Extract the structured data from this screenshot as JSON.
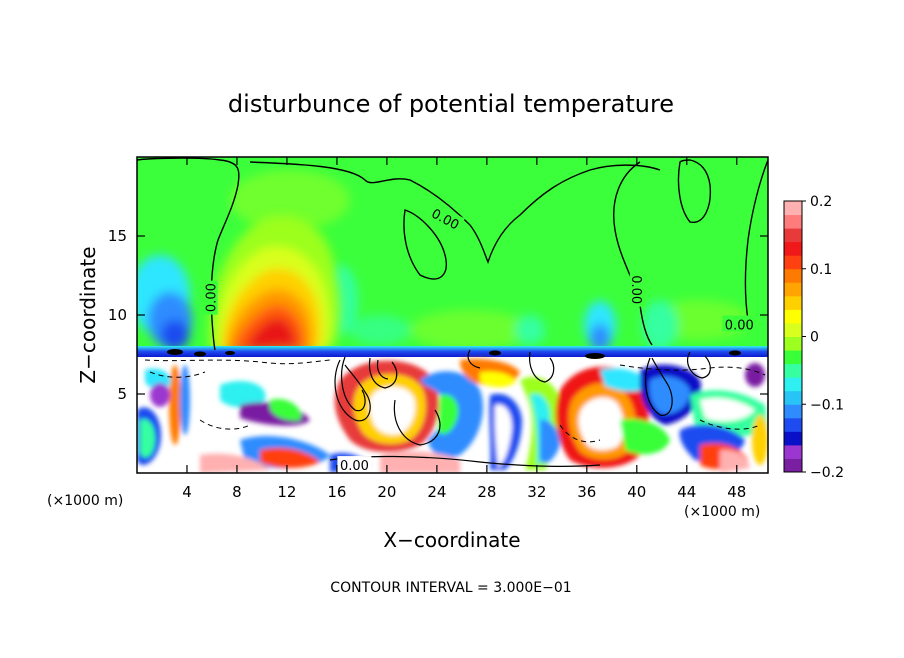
{
  "chart_data": {
    "type": "heatmap",
    "title": "disturbunce of potential temperature",
    "xlabel": "X−coordinate",
    "ylabel": "Z−coordinate",
    "x_unit_left": "(×1000 m)",
    "x_unit_right": "(×1000 m)",
    "xlim": [
      0,
      50.5
    ],
    "ylim": [
      0,
      20
    ],
    "x_ticks": [
      4,
      8,
      12,
      16,
      20,
      24,
      28,
      32,
      36,
      40,
      44,
      48
    ],
    "y_ticks": [
      5,
      10,
      15
    ],
    "colorbar": {
      "range": [
        -0.2,
        0.2
      ],
      "tick_values": [
        0.2,
        0.1,
        0,
        -0.1,
        -0.2
      ],
      "tick_labels": [
        "0.2",
        "0.1",
        "0",
        "−0.1",
        "−0.2"
      ],
      "colors": [
        "#7a1fa2",
        "#9b37d0",
        "#0a10c8",
        "#1f4cf0",
        "#2f8cff",
        "#27c4f5",
        "#2ff0f0",
        "#35ffa0",
        "#39ff39",
        "#9cff1f",
        "#d9ff1e",
        "#ffff00",
        "#ffd000",
        "#ffa400",
        "#ff7a00",
        "#ff4010",
        "#f01818",
        "#e83a3a",
        "#ff7c7c",
        "#ffb0b0"
      ]
    },
    "contour_labels": [
      {
        "text": "0.00",
        "x": 5.9,
        "z": 11.1
      },
      {
        "text": "0.00",
        "x": 24.7,
        "z": 16.1
      },
      {
        "text": "0.00",
        "x": 40.0,
        "z": 11.6
      },
      {
        "text": "0.00",
        "x": 48.2,
        "z": 9.4
      },
      {
        "text": "0.00",
        "x": 17.4,
        "z": 0.5
      }
    ],
    "contour_interval_label": "CONTOUR INTERVAL = 3.000E−01"
  }
}
